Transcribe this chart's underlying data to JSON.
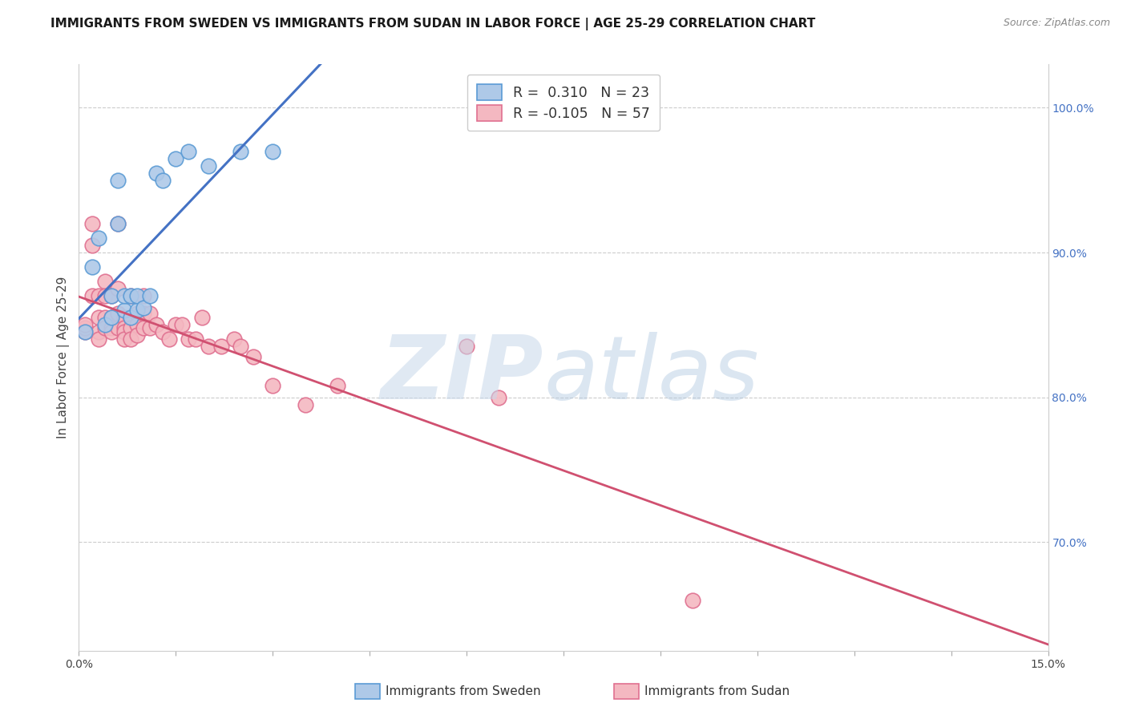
{
  "title": "IMMIGRANTS FROM SWEDEN VS IMMIGRANTS FROM SUDAN IN LABOR FORCE | AGE 25-29 CORRELATION CHART",
  "source": "Source: ZipAtlas.com",
  "ylabel": "In Labor Force | Age 25-29",
  "xlim": [
    0.0,
    0.15
  ],
  "ylim": [
    0.625,
    1.03
  ],
  "xtick_positions": [
    0.0,
    0.015,
    0.03,
    0.045,
    0.06,
    0.075,
    0.09,
    0.105,
    0.12,
    0.135,
    0.15
  ],
  "xtick_labels_sparse": {
    "0": "0.0%",
    "10": "15.0%"
  },
  "yticks_right": [
    0.7,
    0.8,
    0.9,
    1.0
  ],
  "ytick_labels_right": [
    "70.0%",
    "80.0%",
    "90.0%",
    "100.0%"
  ],
  "sweden_fill_color": "#aec9e8",
  "sweden_edge_color": "#5b9bd5",
  "sudan_fill_color": "#f4b8c1",
  "sudan_edge_color": "#e07090",
  "sweden_line_color": "#4472c4",
  "sudan_line_color": "#d05070",
  "background_color": "#ffffff",
  "grid_color": "#cccccc",
  "sweden_R": 0.31,
  "sweden_N": 23,
  "sudan_R": -0.105,
  "sudan_N": 57,
  "sweden_x": [
    0.001,
    0.002,
    0.003,
    0.004,
    0.005,
    0.005,
    0.006,
    0.006,
    0.007,
    0.007,
    0.008,
    0.008,
    0.009,
    0.009,
    0.01,
    0.011,
    0.012,
    0.013,
    0.015,
    0.017,
    0.02,
    0.025,
    0.03
  ],
  "sweden_y": [
    0.845,
    0.89,
    0.91,
    0.85,
    0.87,
    0.855,
    0.95,
    0.92,
    0.86,
    0.87,
    0.855,
    0.87,
    0.86,
    0.87,
    0.862,
    0.87,
    0.955,
    0.95,
    0.965,
    0.97,
    0.96,
    0.97,
    0.97
  ],
  "sudan_x": [
    0.001,
    0.001,
    0.001,
    0.002,
    0.002,
    0.002,
    0.003,
    0.003,
    0.003,
    0.003,
    0.004,
    0.004,
    0.004,
    0.004,
    0.005,
    0.005,
    0.005,
    0.005,
    0.006,
    0.006,
    0.006,
    0.006,
    0.007,
    0.007,
    0.007,
    0.007,
    0.008,
    0.008,
    0.008,
    0.008,
    0.009,
    0.009,
    0.009,
    0.01,
    0.01,
    0.01,
    0.011,
    0.011,
    0.012,
    0.013,
    0.014,
    0.015,
    0.016,
    0.017,
    0.018,
    0.019,
    0.02,
    0.022,
    0.024,
    0.025,
    0.027,
    0.03,
    0.035,
    0.04,
    0.06,
    0.065,
    0.095
  ],
  "sudan_y": [
    0.845,
    0.848,
    0.85,
    0.92,
    0.905,
    0.87,
    0.87,
    0.855,
    0.845,
    0.84,
    0.88,
    0.87,
    0.855,
    0.848,
    0.87,
    0.855,
    0.848,
    0.845,
    0.92,
    0.875,
    0.858,
    0.848,
    0.855,
    0.848,
    0.845,
    0.84,
    0.87,
    0.855,
    0.848,
    0.84,
    0.858,
    0.85,
    0.843,
    0.87,
    0.858,
    0.848,
    0.858,
    0.848,
    0.85,
    0.845,
    0.84,
    0.85,
    0.85,
    0.84,
    0.84,
    0.855,
    0.835,
    0.835,
    0.84,
    0.835,
    0.828,
    0.808,
    0.795,
    0.808,
    0.835,
    0.8,
    0.66
  ],
  "title_fontsize": 11,
  "axis_label_fontsize": 11,
  "tick_fontsize": 10,
  "legend_fontsize": 12.5
}
